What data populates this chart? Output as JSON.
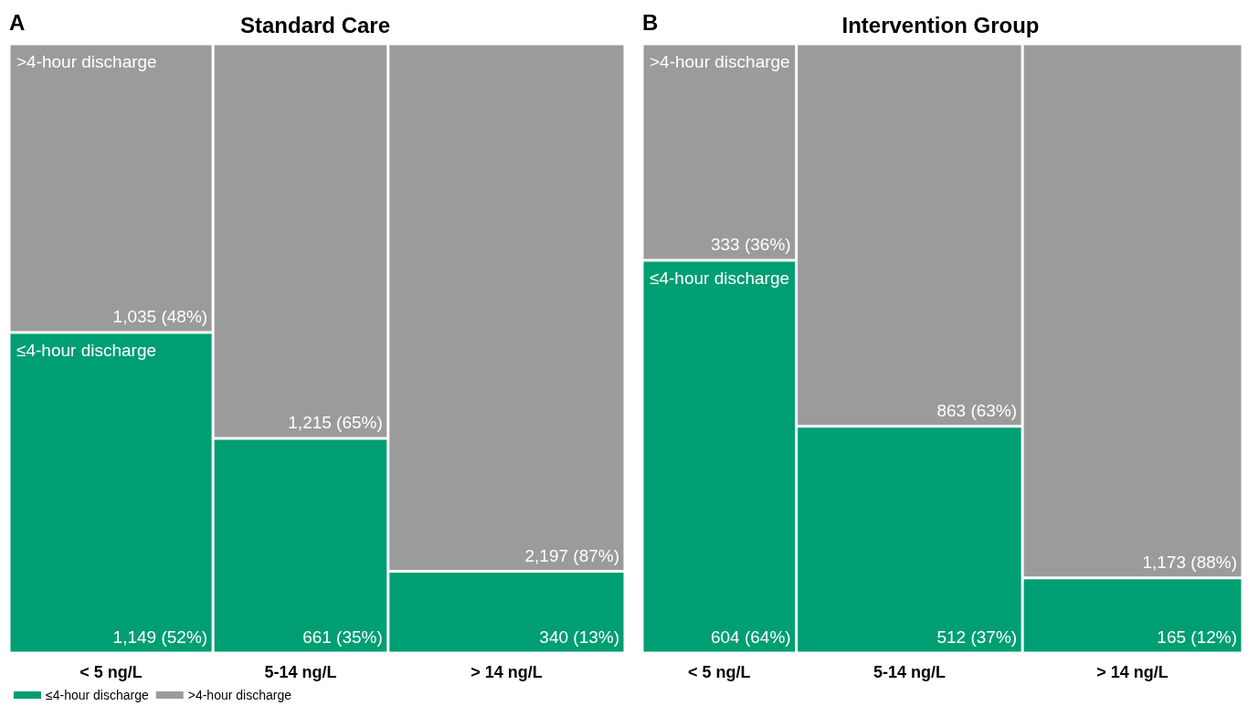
{
  "chart_data": [
    {
      "type": "other",
      "title": "Standard Care",
      "annotations": [
        "A"
      ],
      "categories": [
        "< 5 ng/L",
        "5-14 ng/L",
        "> 14 ng/L"
      ],
      "legend": "bottom left",
      "series": [
        {
          "name": "≤4-hour discharge",
          "color": "#009e73",
          "values": [
            1149,
            661,
            340
          ],
          "value_labels": [
            "1,149 (52%)",
            "661 (35%)",
            "340 (13%)"
          ]
        },
        {
          "name": ">4-hour discharge",
          "color": "#9b9b9b",
          "values": [
            1035,
            1215,
            2197
          ],
          "value_labels": [
            "1,035 (48%)",
            "1,215 (65%)",
            "2,197 (87%)"
          ]
        }
      ]
    },
    {
      "type": "other",
      "title": "Intervention Group",
      "annotations": [
        "B"
      ],
      "categories": [
        "< 5 ng/L",
        "5-14 ng/L",
        "> 14 ng/L"
      ],
      "series": [
        {
          "name": "≤4-hour discharge",
          "color": "#009e73",
          "values": [
            604,
            512,
            165
          ],
          "value_labels": [
            "604 (64%)",
            "512 (37%)",
            "165 (12%)"
          ]
        },
        {
          "name": ">4-hour discharge",
          "color": "#9b9b9b",
          "values": [
            333,
            863,
            1173
          ],
          "value_labels": [
            "333 (36%)",
            "863 (63%)",
            "1,173 (88%)"
          ]
        }
      ]
    }
  ]
}
